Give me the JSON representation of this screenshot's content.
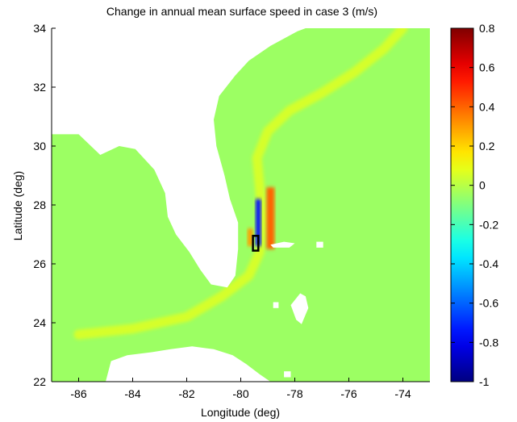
{
  "chart_data": {
    "type": "heatmap",
    "title": "Change in annual mean surface speed in case 3 (m/s)",
    "xlabel": "Longitude (deg)",
    "ylabel": "Latitude (deg)",
    "xlim": [
      -87,
      -73
    ],
    "ylim": [
      22,
      34
    ],
    "xticks": [
      -86,
      -84,
      -82,
      -80,
      -78,
      -76,
      -74
    ],
    "yticks": [
      22,
      24,
      26,
      28,
      30,
      32,
      34
    ],
    "xtick_labels": [
      "-86",
      "-84",
      "-82",
      "-80",
      "-78",
      "-76",
      "-74"
    ],
    "ytick_labels": [
      "22",
      "24",
      "26",
      "28",
      "30",
      "32",
      "34"
    ],
    "colorbar": {
      "colormap": "jet",
      "range": [
        -1,
        0.8
      ],
      "ticks": [
        0.8,
        0.6,
        0.4,
        0.2,
        0,
        -0.2,
        -0.4,
        -0.6,
        -0.8,
        -1
      ],
      "tick_labels": [
        "0.8",
        "0.6",
        "0.4",
        "0.2",
        "0",
        "-0.2",
        "-0.4",
        "-0.6",
        "-0.8",
        "-1"
      ]
    },
    "background_value": -0.05,
    "land_regions": [
      {
        "name": "florida-peninsula-and-southeast-us",
        "polygon": [
          [
            -87,
            34
          ],
          [
            -87,
            30.4
          ],
          [
            -86,
            30.4
          ],
          [
            -85.2,
            29.7
          ],
          [
            -84.5,
            30
          ],
          [
            -83.9,
            29.9
          ],
          [
            -83.2,
            29.2
          ],
          [
            -82.8,
            28.4
          ],
          [
            -82.7,
            27.6
          ],
          [
            -82.4,
            27
          ],
          [
            -81.9,
            26.4
          ],
          [
            -81.5,
            25.8
          ],
          [
            -81.1,
            25.3
          ],
          [
            -80.5,
            25.2
          ],
          [
            -80.2,
            25.6
          ],
          [
            -80.1,
            26.5
          ],
          [
            -80.1,
            27.4
          ],
          [
            -80.4,
            28.2
          ],
          [
            -80.6,
            29
          ],
          [
            -80.9,
            30
          ],
          [
            -81,
            30.9
          ],
          [
            -80.8,
            31.7
          ],
          [
            -80.2,
            32.4
          ],
          [
            -79.7,
            32.9
          ],
          [
            -78.9,
            33.4
          ],
          [
            -77.9,
            33.9
          ],
          [
            -77.6,
            34
          ]
        ]
      },
      {
        "name": "bahamas-grand-bahama",
        "polygon": [
          [
            -78.9,
            26.65
          ],
          [
            -78.4,
            26.75
          ],
          [
            -78.0,
            26.7
          ],
          [
            -78.2,
            26.55
          ],
          [
            -78.8,
            26.55
          ]
        ]
      },
      {
        "name": "bahamas-abaco",
        "polygon": [
          [
            -77.2,
            26.75
          ],
          [
            -76.95,
            26.75
          ],
          [
            -76.95,
            26.55
          ],
          [
            -77.2,
            26.55
          ]
        ]
      },
      {
        "name": "bahamas-andros-nassau",
        "polygon": [
          [
            -78.15,
            24.6
          ],
          [
            -77.8,
            25.0
          ],
          [
            -77.6,
            24.9
          ],
          [
            -77.5,
            24.5
          ],
          [
            -77.75,
            23.95
          ],
          [
            -77.95,
            24.1
          ]
        ]
      },
      {
        "name": "bahamas-small-island",
        "polygon": [
          [
            -78.8,
            24.7
          ],
          [
            -78.6,
            24.7
          ],
          [
            -78.6,
            24.5
          ],
          [
            -78.8,
            24.5
          ]
        ]
      },
      {
        "name": "cuba",
        "polygon": [
          [
            -85,
            22
          ],
          [
            -84.8,
            22.7
          ],
          [
            -84.2,
            22.9
          ],
          [
            -83.3,
            23.0
          ],
          [
            -82.6,
            23.1
          ],
          [
            -81.8,
            23.2
          ],
          [
            -81,
            23.1
          ],
          [
            -80.3,
            22.9
          ],
          [
            -79.8,
            22.6
          ],
          [
            -79.3,
            22.25
          ],
          [
            -78.9,
            22
          ]
        ]
      },
      {
        "name": "key-near-cuba",
        "polygon": [
          [
            -78.4,
            22.35
          ],
          [
            -78.15,
            22.35
          ],
          [
            -78.15,
            22.15
          ],
          [
            -78.4,
            22.15
          ]
        ]
      }
    ],
    "features": [
      {
        "name": "gulf-stream-path",
        "value": 0.05,
        "points": [
          [
            -86,
            23.6
          ],
          [
            -84,
            23.8
          ],
          [
            -82,
            24.2
          ],
          [
            -80.7,
            24.9
          ],
          [
            -79.7,
            25.6
          ],
          [
            -79.3,
            26.4
          ],
          [
            -79.2,
            27.6
          ],
          [
            -79.3,
            28.6
          ],
          [
            -79.4,
            29.6
          ],
          [
            -79.0,
            30.5
          ],
          [
            -78.2,
            31.2
          ],
          [
            -77,
            31.8
          ],
          [
            -75.8,
            32.5
          ],
          [
            -74.7,
            33.3
          ],
          [
            -74,
            34
          ]
        ]
      },
      {
        "name": "reduced-speed-core",
        "value": -0.75,
        "bbox_deg": [
          -79.45,
          26.6,
          -79.25,
          28.2
        ]
      },
      {
        "name": "increased-speed-east-flank",
        "value": 0.4,
        "bbox_deg": [
          -79.05,
          26.5,
          -78.75,
          28.6
        ]
      },
      {
        "name": "increased-speed-west-flank",
        "value": 0.3,
        "bbox_deg": [
          -79.75,
          26.6,
          -79.55,
          27.2
        ]
      },
      {
        "name": "turbine-array",
        "outline": [
          [
            -79.55,
            26.45
          ],
          [
            -79.35,
            26.45
          ],
          [
            -79.35,
            26.95
          ],
          [
            -79.55,
            26.95
          ]
        ]
      }
    ]
  }
}
